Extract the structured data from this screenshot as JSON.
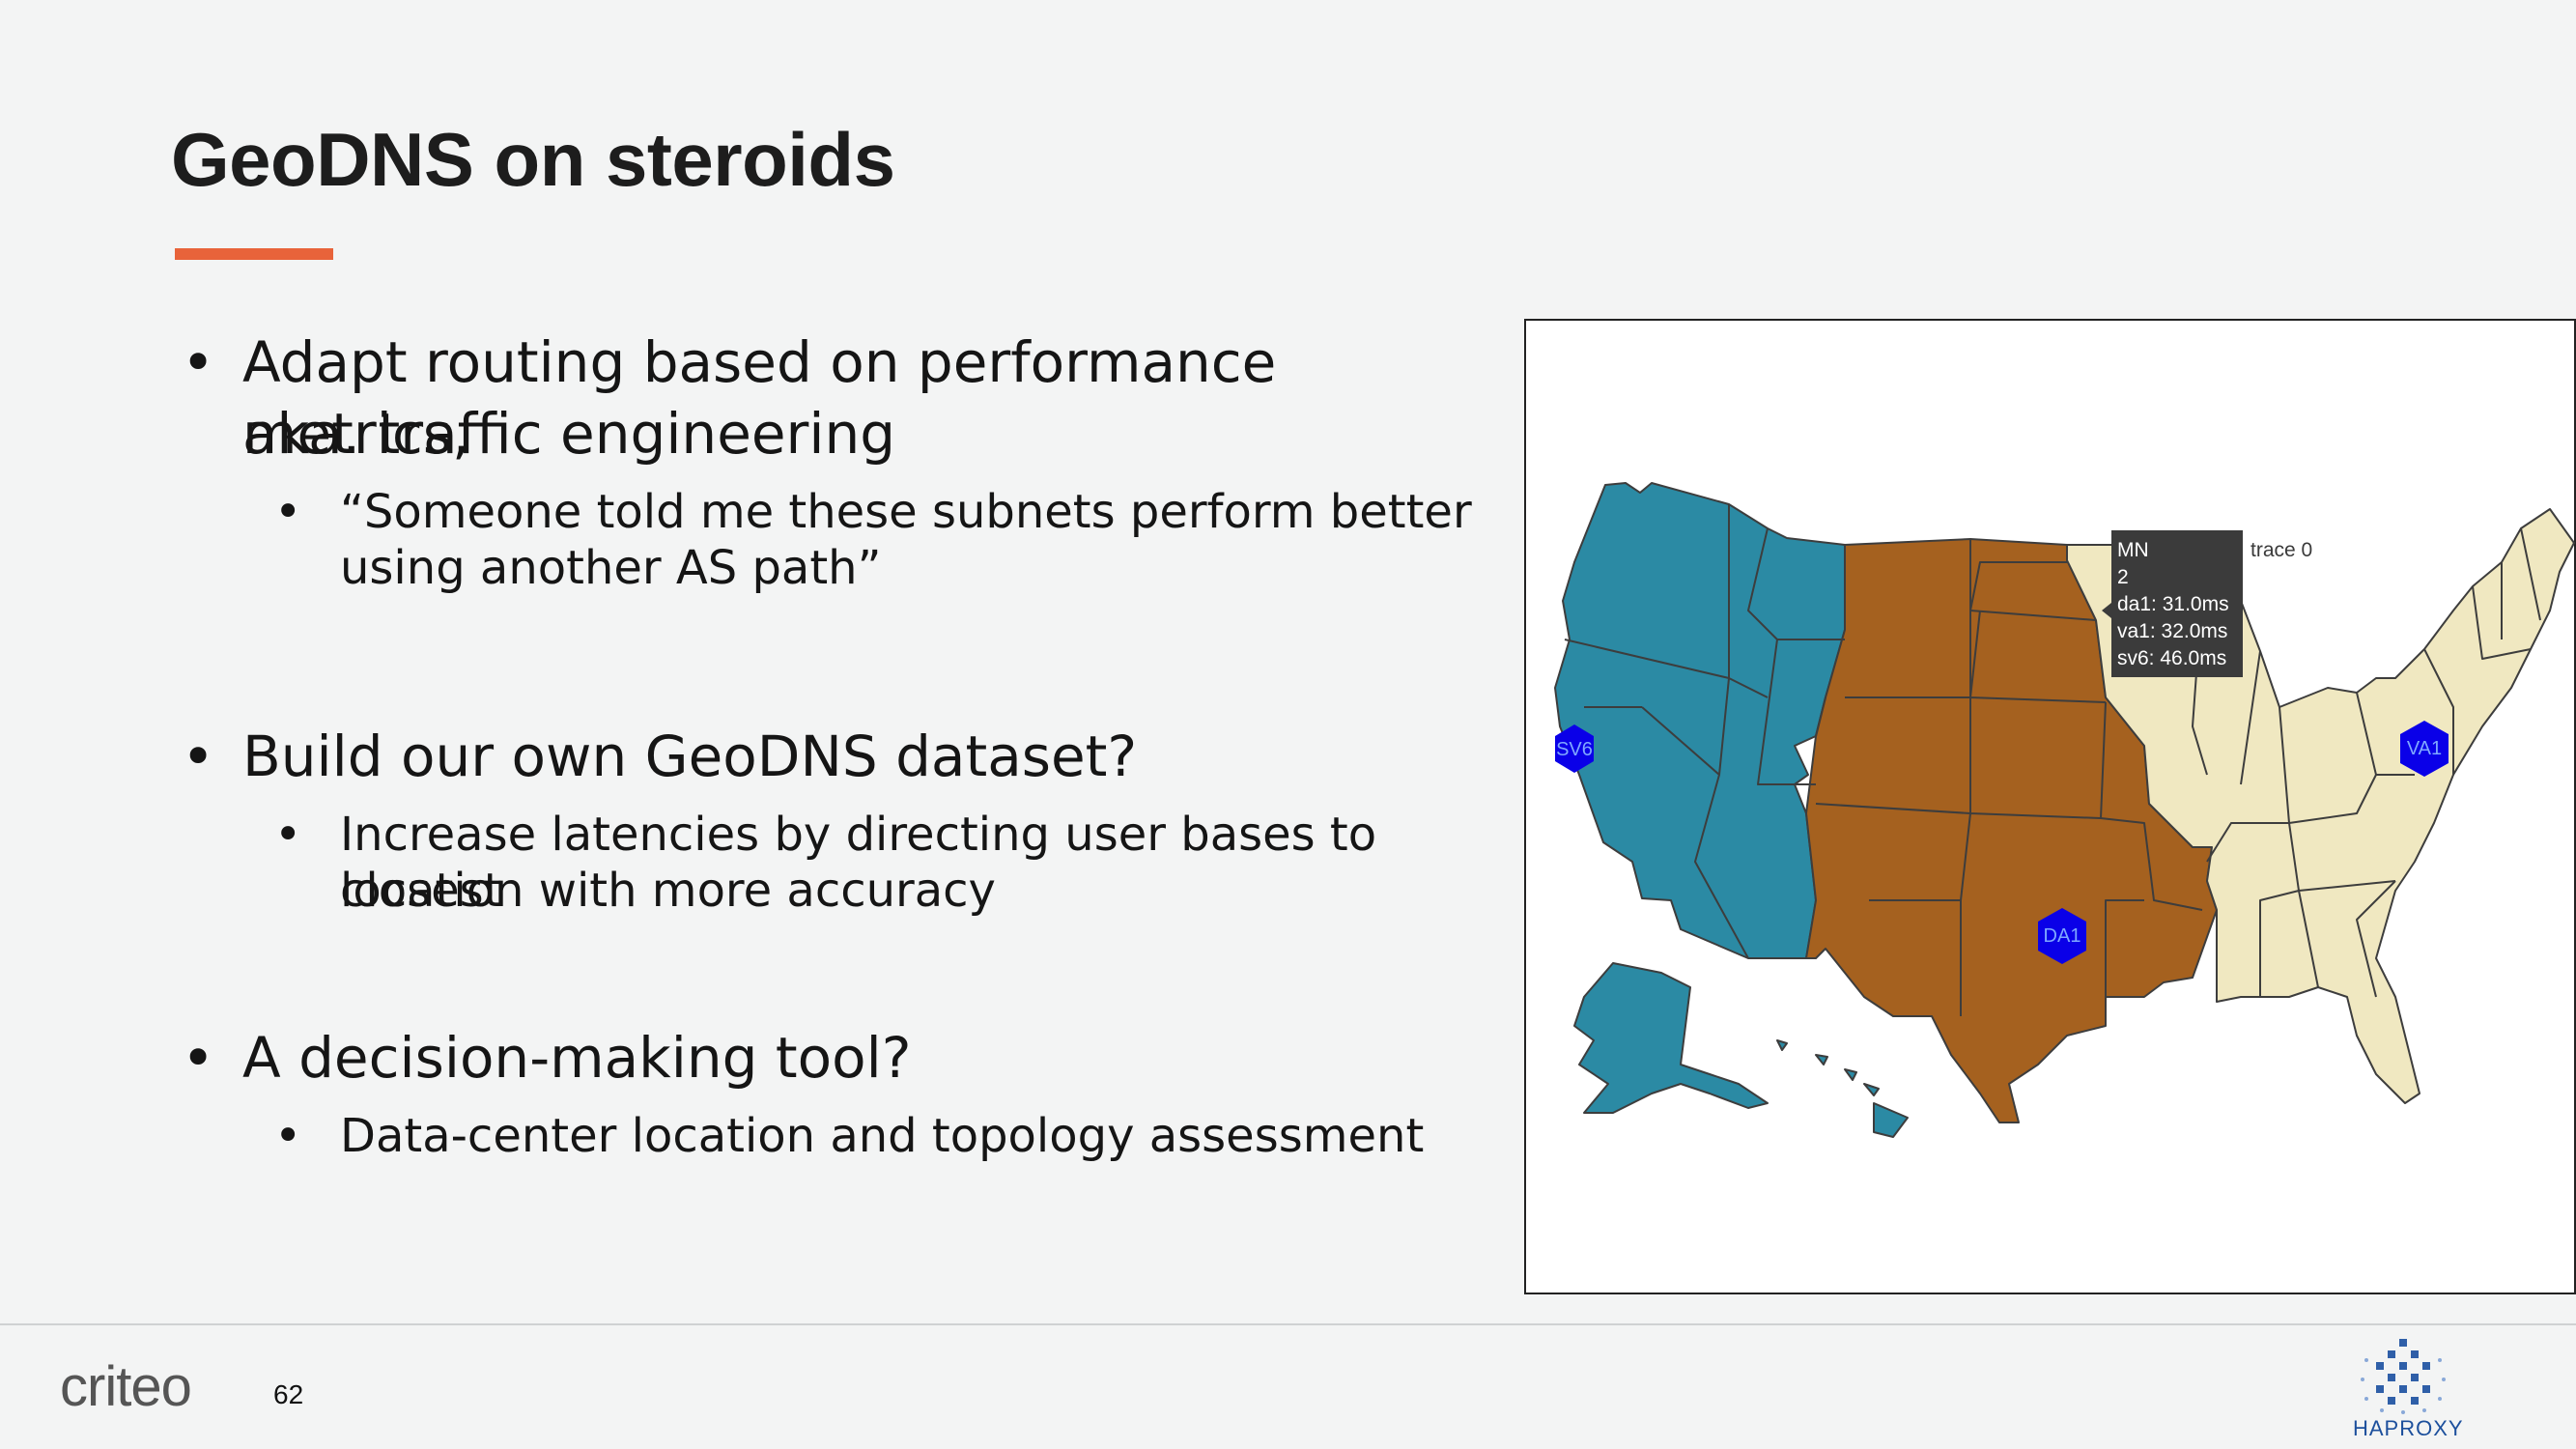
{
  "slide": {
    "title": "GeoDNS on steroids",
    "accent_color": "#e8633a",
    "page_number": "62"
  },
  "bullets": [
    {
      "text_lines": [
        "Adapt routing based on performance metrics,",
        "aka. traffic engineering"
      ],
      "sub": [
        {
          "text_lines": [
            "“Someone told me these subnets perform better",
            "using another AS path”"
          ]
        }
      ]
    },
    {
      "text_lines": [
        "Build our own GeoDNS dataset?"
      ],
      "sub": [
        {
          "text_lines": [
            "Increase latencies by directing user bases to closest",
            "location with more accuracy"
          ]
        }
      ]
    },
    {
      "text_lines": [
        "A decision-making tool?"
      ],
      "sub": [
        {
          "text_lines": [
            "Data-center location and topology assessment"
          ]
        }
      ]
    }
  ],
  "map": {
    "colors": {
      "sv6": "#2b8aa4",
      "da1": "#a5611f",
      "va1": "#f0e8c1",
      "marker": "#0a00e8"
    },
    "markers": [
      "SV6",
      "DA1",
      "VA1"
    ],
    "tooltip": {
      "state": "MN",
      "value": "2",
      "lines": [
        "da1: 31.0ms",
        "va1: 32.0ms",
        "sv6: 46.0ms"
      ],
      "trace": "trace 0"
    }
  },
  "footer": {
    "brand": "criteo",
    "partner": "HAPROXY",
    "partner_icon": "haproxy-logo-icon"
  }
}
